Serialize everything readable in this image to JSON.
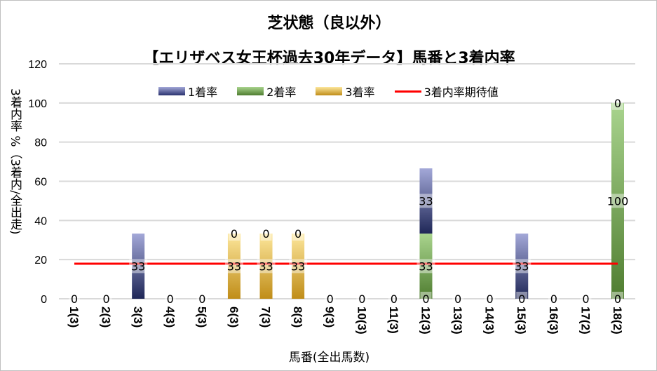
{
  "chart_data": {
    "type": "bar",
    "stacked": true,
    "title": "芝状態（良以外）",
    "subtitle": "【エリザベス女王杯過去30年データ】馬番と3着内率",
    "xlabel": "馬番(全出馬数)",
    "ylabel": "3着内率 %（3着内/全出走)",
    "ylim": [
      0,
      120
    ],
    "yticks": [
      "0",
      "20",
      "40",
      "60",
      "80",
      "100",
      "120"
    ],
    "grid": true,
    "legend_position": "top",
    "categories": [
      "1(3)",
      "2(3)",
      "3(3)",
      "4(3)",
      "5(3)",
      "6(3)",
      "7(3)",
      "8(3)",
      "9(3)",
      "10(3)",
      "11(3)",
      "12(3)",
      "13(3)",
      "14(3)",
      "15(3)",
      "16(3)",
      "17(2)",
      "18(2)"
    ],
    "series": [
      {
        "name": "3着率",
        "color": "#c9961e",
        "values": [
          0,
          0,
          0,
          0,
          0,
          33.3,
          33.3,
          33.3,
          0,
          0,
          0,
          0,
          0,
          0,
          0,
          0,
          0,
          0
        ]
      },
      {
        "name": "2着率",
        "color": "#5a8a3a",
        "values": [
          0,
          0,
          0,
          0,
          0,
          0,
          0,
          0,
          0,
          0,
          0,
          33.3,
          0,
          0,
          0,
          0,
          0,
          100
        ]
      },
      {
        "name": "1着率",
        "color": "#3a4a8f",
        "values": [
          0,
          0,
          33.3,
          0,
          0,
          0,
          0,
          0,
          0,
          0,
          0,
          33.3,
          0,
          0,
          33.3,
          0,
          0,
          0
        ]
      }
    ],
    "line": {
      "name": "3着内率期待値",
      "color": "#ff0000",
      "value": 17.9
    },
    "data_labels": [
      [
        {
          "text": "0",
          "at": 0
        }
      ],
      [
        {
          "text": "0",
          "at": 0
        }
      ],
      [
        {
          "text": "33",
          "at": 16.7
        }
      ],
      [
        {
          "text": "0",
          "at": 0
        }
      ],
      [
        {
          "text": "0",
          "at": 0
        }
      ],
      [
        {
          "text": "33",
          "at": 16.7
        },
        {
          "text": "0",
          "at": 33.3
        }
      ],
      [
        {
          "text": "33",
          "at": 16.7
        },
        {
          "text": "0",
          "at": 33.3
        }
      ],
      [
        {
          "text": "33",
          "at": 16.7
        },
        {
          "text": "0",
          "at": 33.3
        }
      ],
      [
        {
          "text": "0",
          "at": 0
        }
      ],
      [
        {
          "text": "0",
          "at": 0
        }
      ],
      [
        {
          "text": "0",
          "at": 0
        }
      ],
      [
        {
          "text": "0",
          "at": 0
        },
        {
          "text": "33",
          "at": 16.7
        },
        {
          "text": "33",
          "at": 50
        }
      ],
      [
        {
          "text": "0",
          "at": 0
        }
      ],
      [
        {
          "text": "0",
          "at": 0
        }
      ],
      [
        {
          "text": "0",
          "at": 0
        },
        {
          "text": "33",
          "at": 16.7
        }
      ],
      [
        {
          "text": "0",
          "at": 0
        }
      ],
      [
        {
          "text": "0",
          "at": 0
        }
      ],
      [
        {
          "text": "0",
          "at": 0
        },
        {
          "text": "100",
          "at": 50
        },
        {
          "text": "0",
          "at": 100
        }
      ]
    ]
  }
}
